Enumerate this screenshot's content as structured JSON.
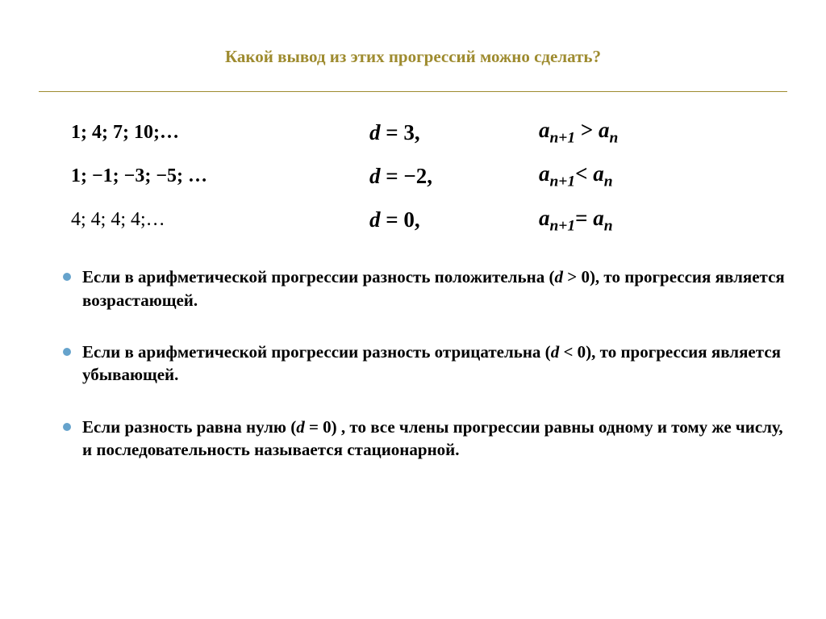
{
  "title": {
    "text": "Какой вывод из этих прогрессий можно сделать?",
    "color": "#9e8b2f",
    "fontsize": 21
  },
  "hr_color": "#9e8b2f",
  "rows": [
    {
      "sequence": "1; 4; 7; 10;…",
      "d_var": "d",
      "d_eq": " = ",
      "d_val": "3",
      "d_punct": ",",
      "rel_lhs_var": "a",
      "rel_lhs_sub": "n+1",
      "rel_op": " > ",
      "rel_rhs_var": "a",
      "rel_rhs_sub": "n"
    },
    {
      "sequence": "1; −1; −3; −5; …",
      "d_var": "d",
      "d_eq": " = ",
      "d_val": "−2",
      "d_punct": ",",
      "rel_lhs_var": "a",
      "rel_lhs_sub": "n+1",
      "rel_op": "< ",
      "rel_rhs_var": "a",
      "rel_rhs_sub": "n"
    },
    {
      "sequence_plain": "4; 4; 4; 4;…",
      "d_var": "d",
      "d_eq": " = ",
      "d_val": "0",
      "d_punct": ",",
      "rel_lhs_var": "a",
      "rel_lhs_sub": "n+1",
      "rel_op": "= ",
      "rel_rhs_var": "a",
      "rel_rhs_sub": "n"
    }
  ],
  "bullet_color": "#66a3cc",
  "bullets": [
    {
      "t1": "Если в арифметической прогрессии разность положительна (",
      "math_var": "d",
      "math_eq": " > ",
      "math_val": "0",
      "t2": "), то прогрессия является возрастающей."
    },
    {
      "t1": "Если в арифметической прогрессии разность отрицательна (",
      "math_var": "d",
      "math_eq": " < ",
      "math_val": "0",
      "t2": "), то прогрессия является убывающей."
    },
    {
      "t1": " Если разность равна нулю (",
      "math_var": "d",
      "math_eq": " = ",
      "math_val": "0",
      "t2": ") , то все члены прогрессии равны одному и тому же числу,  и последовательность называется стационарной."
    }
  ]
}
